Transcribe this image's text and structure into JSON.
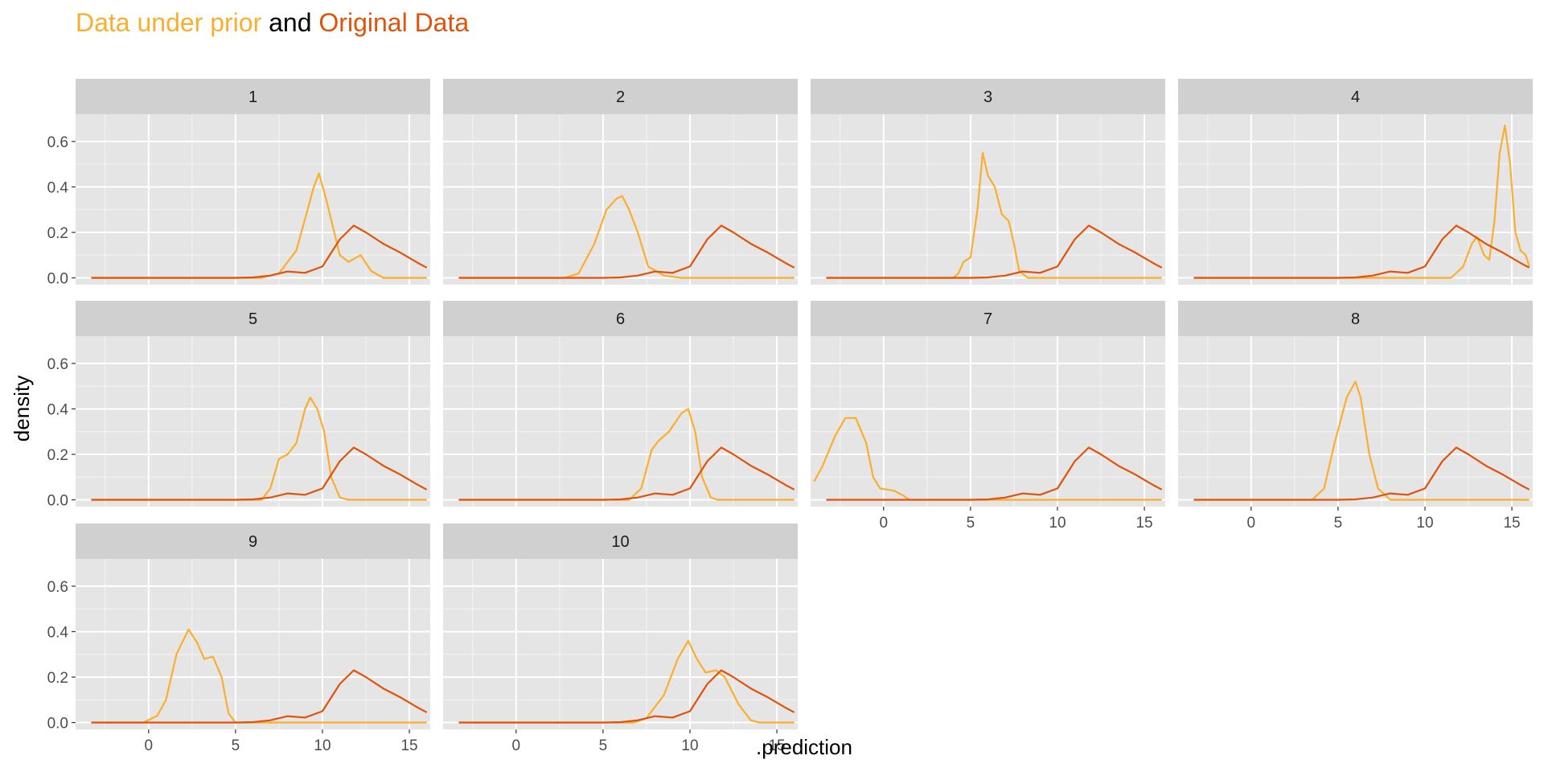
{
  "chart_data": {
    "type": "line",
    "subtype": "faceted-density",
    "title": {
      "part1": "Data under prior",
      "part2": " and ",
      "part3": "Original Data"
    },
    "xlabel": ".prediction",
    "ylabel": "density",
    "xlim": [
      -4.2,
      16.2
    ],
    "ylim": [
      -0.03,
      0.72
    ],
    "x_ticks": [
      0,
      5,
      10,
      15
    ],
    "y_ticks": [
      0.0,
      0.2,
      0.4,
      0.6
    ],
    "x_tick_labels": [
      "0",
      "5",
      "10",
      "15"
    ],
    "y_tick_labels": [
      "0.0",
      "0.2",
      "0.4",
      "0.6"
    ],
    "colors": {
      "prior": "#FBAE2D",
      "original": "#E1520B",
      "panel_bg": "#E5E5E5",
      "strip_bg": "#D0D0D0",
      "grid": "#FFFFFF"
    },
    "layout": {
      "columns": 4
    },
    "original": {
      "name": "Original Data",
      "points": [
        [
          -3.3,
          0
        ],
        [
          5,
          0
        ],
        [
          6,
          0.002
        ],
        [
          7,
          0.01
        ],
        [
          8,
          0.028
        ],
        [
          9,
          0.022
        ],
        [
          10,
          0.05
        ],
        [
          11,
          0.17
        ],
        [
          11.8,
          0.23
        ],
        [
          12.5,
          0.2
        ],
        [
          13.5,
          0.15
        ],
        [
          14.5,
          0.11
        ],
        [
          15.5,
          0.065
        ],
        [
          16,
          0.045
        ]
      ]
    },
    "panels": [
      {
        "label": "1",
        "prior": [
          [
            -3.3,
            0
          ],
          [
            6.5,
            0
          ],
          [
            7.5,
            0.02
          ],
          [
            8.5,
            0.12
          ],
          [
            9.5,
            0.4
          ],
          [
            9.8,
            0.46
          ],
          [
            10.2,
            0.35
          ],
          [
            11,
            0.1
          ],
          [
            11.5,
            0.07
          ],
          [
            12.2,
            0.1
          ],
          [
            12.8,
            0.03
          ],
          [
            13.5,
            0
          ],
          [
            16,
            0
          ]
        ]
      },
      {
        "label": "2",
        "prior": [
          [
            -3.3,
            0
          ],
          [
            2.8,
            0
          ],
          [
            3.6,
            0.02
          ],
          [
            4.5,
            0.15
          ],
          [
            5.2,
            0.3
          ],
          [
            5.8,
            0.35
          ],
          [
            6.1,
            0.36
          ],
          [
            6.5,
            0.3
          ],
          [
            7,
            0.2
          ],
          [
            7.6,
            0.05
          ],
          [
            8.5,
            0.01
          ],
          [
            9.5,
            0
          ],
          [
            16,
            0
          ]
        ]
      },
      {
        "label": "3",
        "prior": [
          [
            -3.3,
            0
          ],
          [
            4,
            0
          ],
          [
            4.3,
            0.02
          ],
          [
            4.6,
            0.07
          ],
          [
            5,
            0.09
          ],
          [
            5.4,
            0.3
          ],
          [
            5.7,
            0.55
          ],
          [
            6,
            0.45
          ],
          [
            6.4,
            0.4
          ],
          [
            6.8,
            0.28
          ],
          [
            7.2,
            0.25
          ],
          [
            7.5,
            0.15
          ],
          [
            7.8,
            0.03
          ],
          [
            8.3,
            0
          ],
          [
            16,
            0
          ]
        ]
      },
      {
        "label": "4",
        "prior": [
          [
            -3.3,
            0
          ],
          [
            11.5,
            0
          ],
          [
            12.2,
            0.05
          ],
          [
            12.7,
            0.15
          ],
          [
            13,
            0.18
          ],
          [
            13.4,
            0.1
          ],
          [
            13.7,
            0.08
          ],
          [
            14,
            0.25
          ],
          [
            14.3,
            0.55
          ],
          [
            14.6,
            0.67
          ],
          [
            14.9,
            0.5
          ],
          [
            15.2,
            0.2
          ],
          [
            15.5,
            0.12
          ],
          [
            15.8,
            0.1
          ],
          [
            16,
            0.05
          ]
        ]
      },
      {
        "label": "5",
        "prior": [
          [
            -3.3,
            0
          ],
          [
            6.5,
            0
          ],
          [
            7,
            0.05
          ],
          [
            7.5,
            0.18
          ],
          [
            8,
            0.2
          ],
          [
            8.5,
            0.25
          ],
          [
            9,
            0.4
          ],
          [
            9.3,
            0.45
          ],
          [
            9.7,
            0.4
          ],
          [
            10.1,
            0.3
          ],
          [
            10.5,
            0.1
          ],
          [
            11,
            0.01
          ],
          [
            11.5,
            0
          ],
          [
            16,
            0
          ]
        ]
      },
      {
        "label": "6",
        "prior": [
          [
            -3.3,
            0
          ],
          [
            6.5,
            0
          ],
          [
            7.2,
            0.05
          ],
          [
            7.8,
            0.22
          ],
          [
            8.2,
            0.26
          ],
          [
            8.8,
            0.3
          ],
          [
            9.5,
            0.38
          ],
          [
            9.9,
            0.4
          ],
          [
            10.3,
            0.3
          ],
          [
            10.7,
            0.1
          ],
          [
            11.2,
            0.01
          ],
          [
            11.6,
            0
          ],
          [
            16,
            0
          ]
        ]
      },
      {
        "label": "7",
        "prior": [
          [
            -4,
            0.08
          ],
          [
            -3.5,
            0.15
          ],
          [
            -2.8,
            0.28
          ],
          [
            -2.2,
            0.36
          ],
          [
            -1.6,
            0.36
          ],
          [
            -1,
            0.25
          ],
          [
            -0.6,
            0.1
          ],
          [
            -0.2,
            0.05
          ],
          [
            0.6,
            0.04
          ],
          [
            1.1,
            0.02
          ],
          [
            1.5,
            0
          ],
          [
            16,
            0
          ]
        ]
      },
      {
        "label": "8",
        "prior": [
          [
            -3.3,
            0
          ],
          [
            3.5,
            0
          ],
          [
            4.2,
            0.05
          ],
          [
            4.8,
            0.25
          ],
          [
            5.5,
            0.45
          ],
          [
            6,
            0.52
          ],
          [
            6.3,
            0.45
          ],
          [
            6.8,
            0.2
          ],
          [
            7.3,
            0.05
          ],
          [
            8,
            0
          ],
          [
            16,
            0
          ]
        ]
      },
      {
        "label": "9",
        "prior": [
          [
            -3.3,
            0
          ],
          [
            -0.3,
            0
          ],
          [
            0.5,
            0.03
          ],
          [
            1,
            0.1
          ],
          [
            1.6,
            0.3
          ],
          [
            2.3,
            0.41
          ],
          [
            2.8,
            0.35
          ],
          [
            3.2,
            0.28
          ],
          [
            3.7,
            0.29
          ],
          [
            4.2,
            0.2
          ],
          [
            4.6,
            0.04
          ],
          [
            5,
            0
          ],
          [
            16,
            0
          ]
        ]
      },
      {
        "label": "10",
        "prior": [
          [
            -3.3,
            0
          ],
          [
            6.8,
            0
          ],
          [
            7.5,
            0.02
          ],
          [
            8.5,
            0.12
          ],
          [
            9.3,
            0.28
          ],
          [
            9.9,
            0.36
          ],
          [
            10.4,
            0.28
          ],
          [
            10.9,
            0.22
          ],
          [
            11.5,
            0.23
          ],
          [
            12,
            0.2
          ],
          [
            12.8,
            0.08
          ],
          [
            13.5,
            0.01
          ],
          [
            14,
            0
          ],
          [
            16,
            0
          ]
        ]
      }
    ]
  }
}
